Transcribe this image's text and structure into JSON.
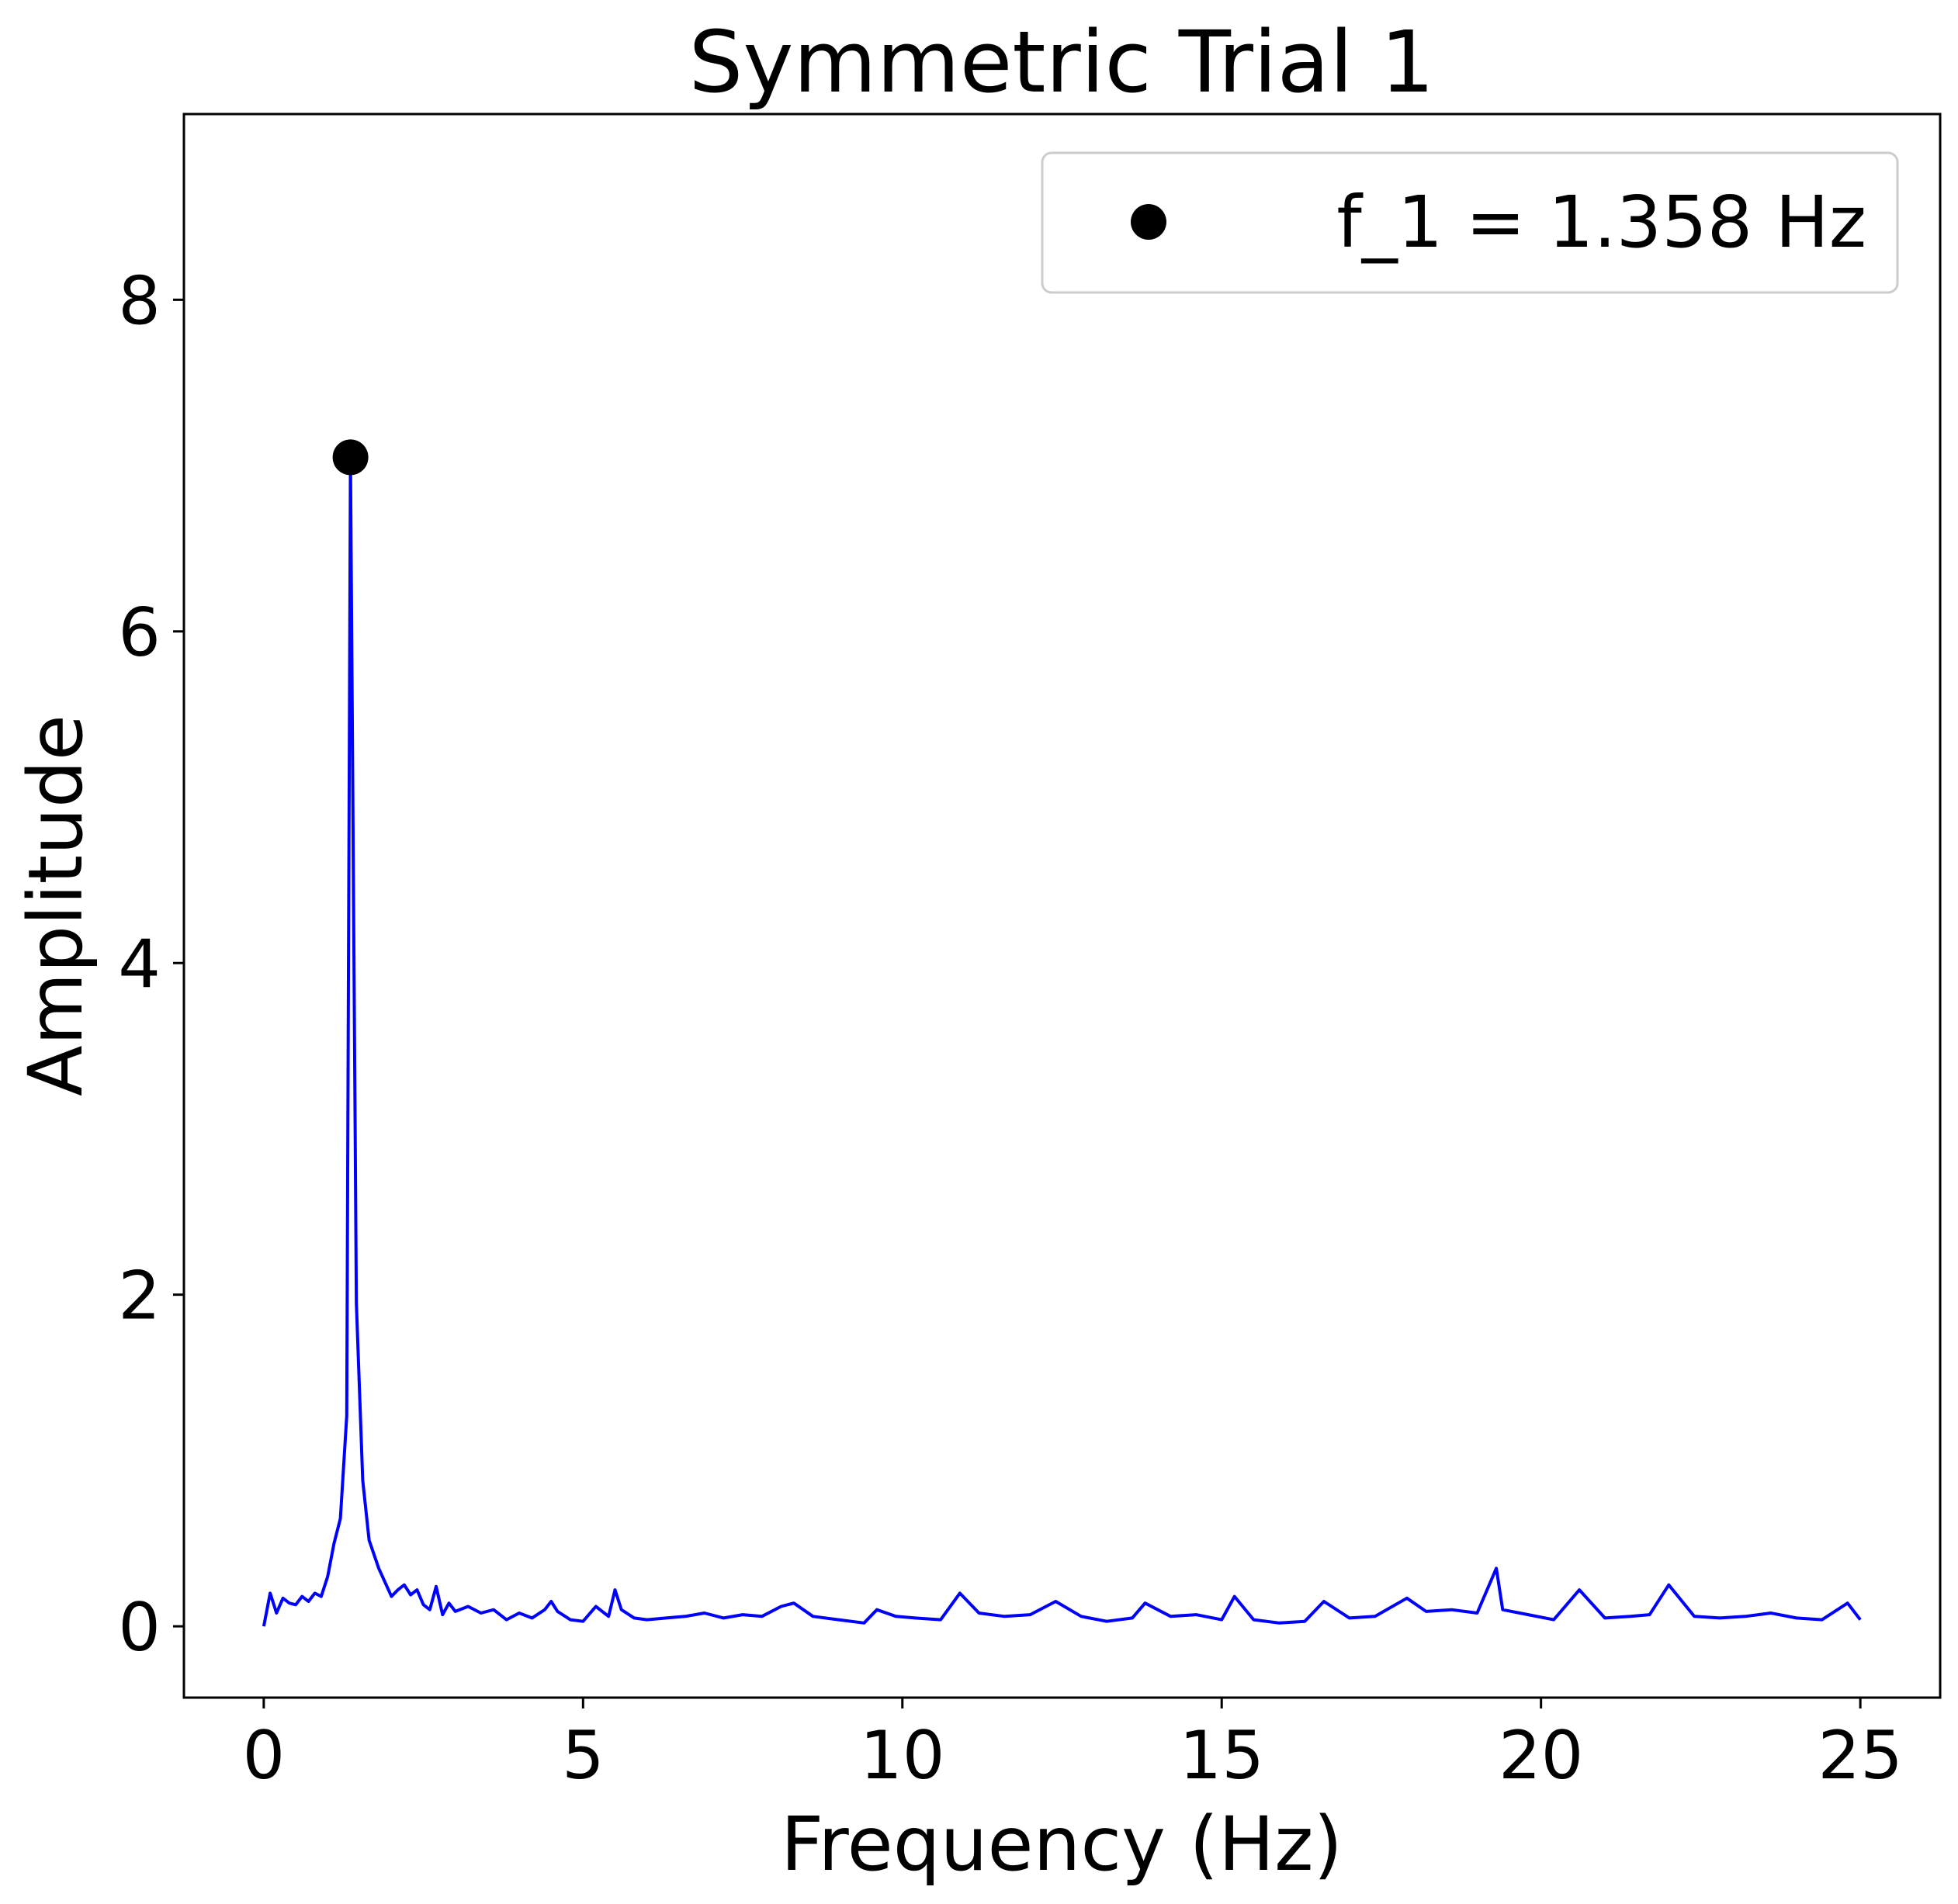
{
  "chart_data": {
    "type": "line",
    "title": "Symmetric Trial 1",
    "xlabel": "Frequency (Hz)",
    "ylabel": "Amplitude",
    "xlim": [
      -1.25,
      26.25
    ],
    "ylim": [
      -0.43,
      9.12
    ],
    "xticks": [
      0,
      5,
      10,
      15,
      20,
      25
    ],
    "yticks": [
      0,
      2,
      4,
      6,
      8
    ],
    "grid": false,
    "legend": {
      "placement": "top-right",
      "entries": [
        {
          "marker": "circle",
          "color": "#000000",
          "label": "f_1 = 1.358 Hz"
        }
      ]
    },
    "series": [
      {
        "color": "#0000ff",
        "x": [
          0,
          0.1,
          0.2,
          0.3,
          0.4,
          0.5,
          0.6,
          0.7,
          0.8,
          0.9,
          1.0,
          1.1,
          1.2,
          1.3,
          1.358,
          1.45,
          1.55,
          1.65,
          1.8,
          2.0,
          2.1,
          2.2,
          2.3,
          2.4,
          2.5,
          2.6,
          2.7,
          2.8,
          2.9,
          3.0,
          3.2,
          3.4,
          3.6,
          3.8,
          4.0,
          4.2,
          4.4,
          4.5,
          4.6,
          4.8,
          5.0,
          5.2,
          5.4,
          5.5,
          5.6,
          5.8,
          6.0,
          6.3,
          6.6,
          6.9,
          7.2,
          7.5,
          7.8,
          8.1,
          8.3,
          8.6,
          9.0,
          9.4,
          9.6,
          9.9,
          10.2,
          10.6,
          10.9,
          11.2,
          11.6,
          12.0,
          12.4,
          12.8,
          13.2,
          13.6,
          13.8,
          14.2,
          14.6,
          15.0,
          15.2,
          15.5,
          15.9,
          16.3,
          16.6,
          17.0,
          17.4,
          17.9,
          18.2,
          18.6,
          19.0,
          19.3,
          19.4,
          19.8,
          20.2,
          20.6,
          21.0,
          21.4,
          21.7,
          22.0,
          22.4,
          22.8,
          23.2,
          23.6,
          24.0,
          24.4,
          24.8,
          25.0
        ],
        "y": [
          0.0,
          0.2,
          0.08,
          0.17,
          0.14,
          0.13,
          0.18,
          0.15,
          0.2,
          0.18,
          0.3,
          0.5,
          0.65,
          1.27,
          7.05,
          1.95,
          0.88,
          0.52,
          0.35,
          0.18,
          0.22,
          0.25,
          0.19,
          0.22,
          0.13,
          0.1,
          0.24,
          0.07,
          0.14,
          0.09,
          0.12,
          0.08,
          0.1,
          0.04,
          0.08,
          0.05,
          0.1,
          0.15,
          0.09,
          0.04,
          0.03,
          0.12,
          0.06,
          0.22,
          0.1,
          0.05,
          0.04,
          0.05,
          0.06,
          0.08,
          0.05,
          0.07,
          0.06,
          0.12,
          0.14,
          0.06,
          0.04,
          0.02,
          0.1,
          0.06,
          0.05,
          0.04,
          0.2,
          0.08,
          0.06,
          0.07,
          0.15,
          0.06,
          0.03,
          0.05,
          0.14,
          0.06,
          0.07,
          0.04,
          0.18,
          0.04,
          0.02,
          0.03,
          0.15,
          0.05,
          0.06,
          0.17,
          0.09,
          0.1,
          0.08,
          0.35,
          0.1,
          0.07,
          0.04,
          0.22,
          0.05,
          0.06,
          0.07,
          0.25,
          0.06,
          0.05,
          0.06,
          0.08,
          0.05,
          0.04,
          0.14,
          0.04
        ]
      }
    ],
    "peak": {
      "x": 1.358,
      "y": 7.05,
      "marker": "circle",
      "color": "#000000"
    }
  }
}
